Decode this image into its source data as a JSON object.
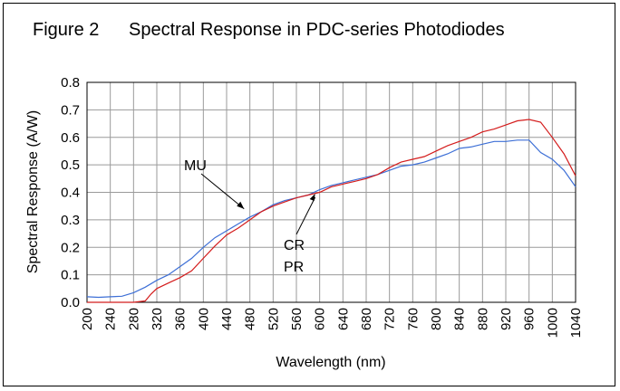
{
  "figure": {
    "label": "Figure 2",
    "title": "Spectral Response in PDC-series Photodiodes"
  },
  "colors": {
    "MU": "#3d6fd6",
    "CR_PR": "#d41c1c",
    "grid": "#9a9a9a",
    "axis": "#000000"
  },
  "chart_data": {
    "type": "line",
    "title": "Figure 2    Spectral Response in PDC-series Photodiodes",
    "xlabel": "Wavelength (nm)",
    "ylabel": "Spectral Response (A/W)",
    "xlim": [
      200,
      1040
    ],
    "ylim": [
      0.0,
      0.8
    ],
    "xticks": [
      "200",
      "240",
      "280",
      "320",
      "360",
      "400",
      "440",
      "480",
      "520",
      "560",
      "600",
      "640",
      "680",
      "720",
      "760",
      "800",
      "840",
      "880",
      "920",
      "960",
      "1000",
      "1040"
    ],
    "yticks": [
      "0.0",
      "0.1",
      "0.2",
      "0.3",
      "0.4",
      "0.5",
      "0.6",
      "0.7",
      "0.8"
    ],
    "grid": true,
    "series": [
      {
        "name": "MU",
        "x": [
          200,
          220,
          240,
          260,
          280,
          300,
          320,
          340,
          360,
          380,
          400,
          420,
          440,
          460,
          480,
          500,
          520,
          540,
          560,
          580,
          600,
          620,
          640,
          660,
          680,
          700,
          720,
          740,
          760,
          780,
          800,
          820,
          840,
          860,
          880,
          900,
          920,
          940,
          960,
          980,
          1000,
          1020,
          1040
        ],
        "y": [
          0.02,
          0.018,
          0.02,
          0.022,
          0.035,
          0.055,
          0.08,
          0.1,
          0.13,
          0.16,
          0.2,
          0.235,
          0.26,
          0.285,
          0.31,
          0.33,
          0.355,
          0.37,
          0.38,
          0.39,
          0.41,
          0.425,
          0.435,
          0.445,
          0.455,
          0.465,
          0.48,
          0.495,
          0.5,
          0.51,
          0.525,
          0.54,
          0.56,
          0.565,
          0.575,
          0.585,
          0.585,
          0.59,
          0.59,
          0.545,
          0.52,
          0.48,
          0.42
        ]
      },
      {
        "name": "CR PR",
        "x": [
          200,
          220,
          240,
          260,
          280,
          300,
          310,
          320,
          340,
          360,
          380,
          400,
          420,
          440,
          460,
          480,
          500,
          520,
          540,
          560,
          580,
          600,
          620,
          640,
          660,
          680,
          700,
          720,
          740,
          760,
          780,
          800,
          820,
          840,
          860,
          880,
          900,
          920,
          940,
          960,
          980,
          1000,
          1020,
          1040
        ],
        "y": [
          0.0,
          0.0,
          0.0,
          0.0,
          0.0,
          0.005,
          0.03,
          0.05,
          0.07,
          0.09,
          0.115,
          0.16,
          0.205,
          0.245,
          0.27,
          0.3,
          0.33,
          0.35,
          0.365,
          0.38,
          0.39,
          0.4,
          0.42,
          0.43,
          0.44,
          0.45,
          0.465,
          0.49,
          0.51,
          0.52,
          0.53,
          0.55,
          0.57,
          0.585,
          0.6,
          0.62,
          0.63,
          0.645,
          0.66,
          0.665,
          0.655,
          0.6,
          0.54,
          0.46
        ]
      }
    ],
    "annotations": [
      {
        "text": "MU",
        "points_to": [
          470,
          0.34
        ]
      },
      {
        "text": "CR",
        "points_to": [
          600,
          0.395
        ]
      },
      {
        "text": "PR",
        "points_to": [
          600,
          0.395
        ]
      }
    ]
  }
}
